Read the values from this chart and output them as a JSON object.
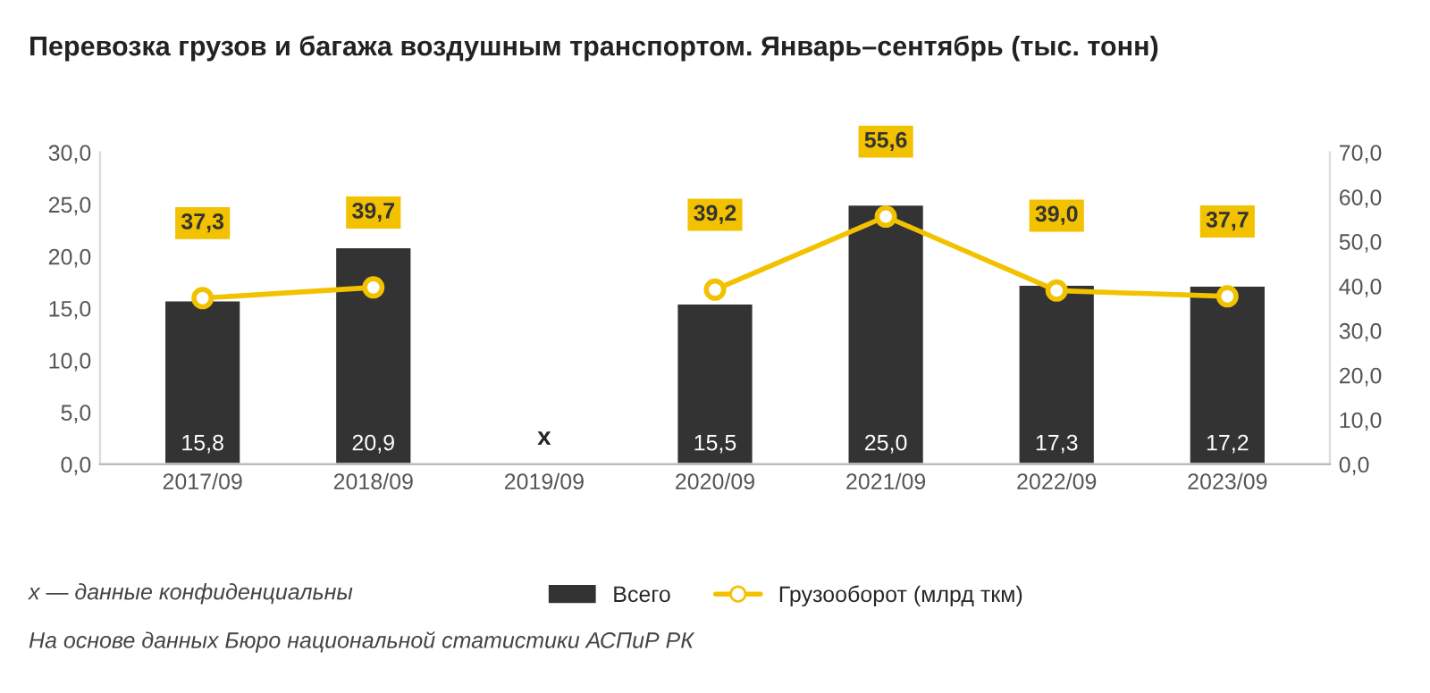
{
  "chart_data": {
    "type": "bar",
    "title": "Перевозка грузов и багажа воздушным транспортом. Январь–сентябрь (тыс. тонн)",
    "categories": [
      "2017/09",
      "2018/09",
      "2019/09",
      "2020/09",
      "2021/09",
      "2022/09",
      "2023/09"
    ],
    "series": [
      {
        "name": "Всего",
        "color": "#333333",
        "values": [
          15.8,
          20.9,
          null,
          15.5,
          25.0,
          17.3,
          17.2
        ],
        "value_labels": [
          "15,8",
          "20,9",
          null,
          "15,5",
          "25,0",
          "17,3",
          "17,2"
        ]
      },
      {
        "name": "Грузооборот (млрд ткм)",
        "type": "line",
        "axis": "y2",
        "color": "#f2c200",
        "marker": "circle",
        "values": [
          37.3,
          39.7,
          null,
          39.2,
          55.6,
          39.0,
          37.7
        ],
        "value_labels": [
          "37,3",
          "39,7",
          null,
          "39,2",
          "55,6",
          "39,0",
          "37,7"
        ]
      }
    ],
    "ylim": [
      0,
      30
    ],
    "yticks": [
      {
        "value": 0,
        "label": "0,0"
      },
      {
        "value": 5,
        "label": "5,0"
      },
      {
        "value": 10,
        "label": "10,0"
      },
      {
        "value": 15,
        "label": "15,0"
      },
      {
        "value": 20,
        "label": "20,0"
      },
      {
        "value": 25,
        "label": "25,0"
      },
      {
        "value": 30,
        "label": "30,0"
      }
    ],
    "y2lim": [
      0,
      70
    ],
    "y2ticks": [
      {
        "value": 0,
        "label": "0,0"
      },
      {
        "value": 10,
        "label": "10,0"
      },
      {
        "value": 20,
        "label": "20,0"
      },
      {
        "value": 30,
        "label": "30,0"
      },
      {
        "value": 40,
        "label": "40,0"
      },
      {
        "value": 50,
        "label": "50,0"
      },
      {
        "value": 60,
        "label": "60,0"
      },
      {
        "value": 70,
        "label": "70,0"
      }
    ],
    "grid": false,
    "legend": "bottom",
    "annotations": [
      "x",
      "x — данные конфиденциальны",
      "На основе данных Бюро национальной статистики АСПиР РК"
    ]
  }
}
